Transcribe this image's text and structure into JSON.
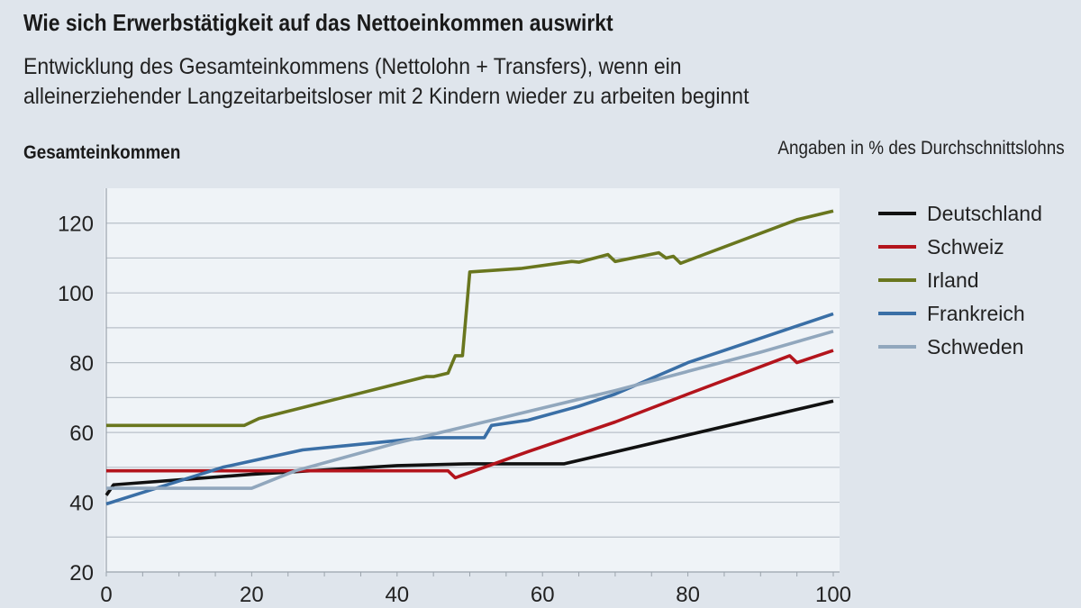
{
  "chart_data": {
    "type": "line",
    "title": "Wie sich Erwerbstätigkeit auf das Nettoeinkommen auswirkt",
    "subtitle": [
      "Entwicklung des Gesamteinkommens (Nettolohn + Transfers), wenn ein",
      "alleinerziehender Langzeitarbeitsloser mit 2 Kindern wieder zu arbeiten beginnt"
    ],
    "ylabel": "Gesamteinkommen",
    "unit_note": "Angaben in % des Durchschnittslohns",
    "xlim": [
      0,
      100
    ],
    "ylim": [
      20,
      130
    ],
    "xticks": [
      0,
      20,
      40,
      60,
      80,
      100
    ],
    "yticks": [
      20,
      40,
      60,
      80,
      100,
      120
    ],
    "grid": true,
    "legend_position": "right",
    "series": [
      {
        "name": "Deutschland",
        "color": "#111111",
        "points": [
          [
            0,
            42
          ],
          [
            1,
            45
          ],
          [
            20,
            48
          ],
          [
            40,
            50.5
          ],
          [
            50,
            51
          ],
          [
            63,
            51
          ],
          [
            100,
            69
          ]
        ]
      },
      {
        "name": "Schweiz",
        "color": "#b3141c",
        "points": [
          [
            0,
            49
          ],
          [
            47,
            49
          ],
          [
            48,
            47
          ],
          [
            56,
            53
          ],
          [
            58,
            54.5
          ],
          [
            70,
            63
          ],
          [
            80,
            71
          ],
          [
            94,
            82
          ],
          [
            95,
            80
          ],
          [
            100,
            83.5
          ]
        ]
      },
      {
        "name": "Irland",
        "color": "#69761e",
        "points": [
          [
            0,
            62
          ],
          [
            19,
            62
          ],
          [
            21,
            64
          ],
          [
            44,
            76
          ],
          [
            45,
            76
          ],
          [
            47,
            77
          ],
          [
            48,
            82
          ],
          [
            49,
            82
          ],
          [
            50,
            106
          ],
          [
            57,
            107
          ],
          [
            64,
            109
          ],
          [
            65,
            108.8
          ],
          [
            69,
            111
          ],
          [
            70,
            109
          ],
          [
            76,
            111.5
          ],
          [
            77,
            110
          ],
          [
            78,
            110.5
          ],
          [
            79,
            108.5
          ],
          [
            95,
            121
          ],
          [
            100,
            123.5
          ]
        ]
      },
      {
        "name": "Frankreich",
        "color": "#3a6fa6",
        "points": [
          [
            0,
            39.5
          ],
          [
            16,
            50
          ],
          [
            27,
            55
          ],
          [
            44,
            58.5
          ],
          [
            52,
            58.5
          ],
          [
            53,
            62
          ],
          [
            58,
            63.5
          ],
          [
            65,
            67.5
          ],
          [
            70,
            71
          ],
          [
            80,
            80
          ],
          [
            100,
            94
          ]
        ]
      },
      {
        "name": "Schweden",
        "color": "#91a7bd",
        "points": [
          [
            0,
            44
          ],
          [
            20,
            44
          ],
          [
            26,
            49
          ],
          [
            40,
            57
          ],
          [
            58,
            66
          ],
          [
            70,
            72
          ],
          [
            80,
            77.5
          ],
          [
            90,
            83
          ],
          [
            100,
            89
          ]
        ]
      }
    ]
  }
}
